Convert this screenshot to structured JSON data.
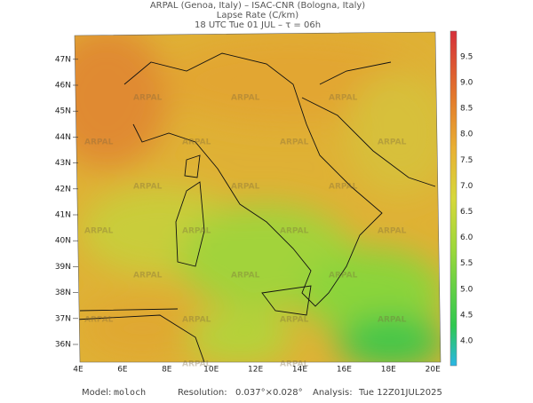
{
  "header": {
    "lines": [
      "ARPAL (Genoa, Italy)  –  ISAC-CNR (Bologna, Italy)",
      "Lapse Rate (C/km)",
      "18 UTC Tue 01 JUL  –  τ = 06h"
    ]
  },
  "map": {
    "lat_labels": [
      "36N",
      "37N",
      "38N",
      "39N",
      "40N",
      "41N",
      "42N",
      "43N",
      "44N",
      "45N",
      "46N",
      "47N"
    ],
    "lon_labels": [
      "4E",
      "6E",
      "8E",
      "10E",
      "12E",
      "14E",
      "16E",
      "18E",
      "20E"
    ],
    "watermark": "ARPAL"
  },
  "colorbar": {
    "labels": [
      "4.0",
      "4.5",
      "5.0",
      "5.5",
      "6.0",
      "6.5",
      "7.0",
      "7.5",
      "8.0",
      "8.5",
      "9.0",
      "9.5"
    ]
  },
  "footer": {
    "model_label": "Model:",
    "model": "moloch",
    "resolution_label": "Resolution:",
    "resolution": "0.037°×0.028°",
    "analysis_label": "Analysis:",
    "analysis": "Tue 12Z01JUL2025"
  }
}
